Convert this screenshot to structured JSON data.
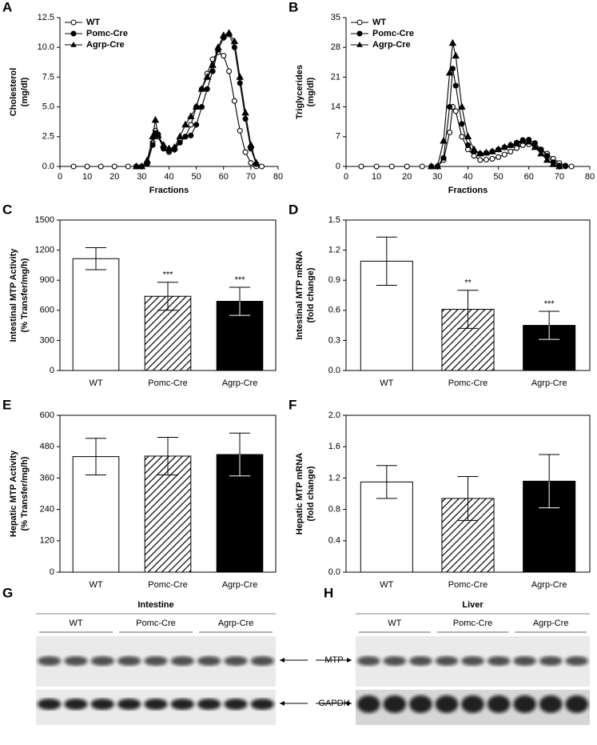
{
  "chart_data": [
    {
      "type": "line",
      "panel": "A",
      "ylabel": [
        "Cholesterol",
        "(mg/dl)"
      ],
      "xlabel": "Fractions",
      "x": [
        5,
        10,
        15,
        20,
        25,
        28,
        30,
        32,
        34,
        35,
        36,
        38,
        40,
        42,
        44,
        46,
        48,
        50,
        52,
        54,
        56,
        58,
        60,
        62,
        64,
        66,
        68,
        70,
        72,
        74
      ],
      "xlim": [
        0,
        80
      ],
      "xticks": [
        0,
        10,
        20,
        30,
        40,
        50,
        60,
        70,
        80
      ],
      "ylim": [
        0,
        12.5
      ],
      "yticks": [
        {
          "value": 0,
          "label": "0.0"
        },
        2.5,
        {
          "value": 5,
          "label": "5.0"
        },
        7.5,
        {
          "value": 10,
          "label": "10.0"
        },
        12.5
      ],
      "series": [
        {
          "name": "WT",
          "color": "#000000",
          "marker": "open-circle",
          "values": [
            0,
            0,
            0,
            0,
            0,
            0,
            0,
            0.3,
            2,
            3.0,
            2.5,
            1.5,
            1.2,
            1.5,
            2.2,
            2.5,
            3.5,
            5,
            6.5,
            7.8,
            9,
            9.6,
            9.3,
            8,
            5.5,
            3,
            1.2,
            0.3,
            0,
            0
          ]
        },
        {
          "name": "Pomc-Cre",
          "color": "#000000",
          "marker": "filled-circle",
          "values": [
            null,
            null,
            null,
            null,
            null,
            0,
            0,
            0.2,
            1.8,
            2.8,
            2.7,
            1.5,
            1.3,
            1.4,
            2.0,
            2.5,
            2.6,
            3.5,
            5,
            6.5,
            8,
            9.8,
            10.8,
            11.1,
            10,
            7,
            4,
            1.5,
            0.2,
            null
          ]
        },
        {
          "name": "Agrp-Cre",
          "color": "#000000",
          "marker": "triangle",
          "values": [
            null,
            null,
            null,
            null,
            null,
            0,
            0,
            0.5,
            2.5,
            3.9,
            2.6,
            1.8,
            1.5,
            1.6,
            2.5,
            3.5,
            4.2,
            5,
            6.5,
            7.5,
            8.5,
            10,
            11,
            11.2,
            10.5,
            7.5,
            4.5,
            1.8,
            0.3,
            null
          ]
        }
      ]
    },
    {
      "type": "line",
      "panel": "B",
      "ylabel": [
        "Triglycerides",
        "(mg/dl)"
      ],
      "xlabel": "Fractions",
      "x": [
        5,
        10,
        15,
        20,
        25,
        28,
        30,
        32,
        34,
        35,
        36,
        38,
        40,
        42,
        44,
        46,
        48,
        50,
        52,
        54,
        56,
        58,
        60,
        62,
        64,
        66,
        68,
        70,
        72,
        74
      ],
      "xlim": [
        0,
        80
      ],
      "xticks": [
        0,
        10,
        20,
        30,
        40,
        50,
        60,
        70,
        80
      ],
      "ylim": [
        0,
        35
      ],
      "yticks": [
        0,
        7,
        14,
        21,
        28,
        35
      ],
      "series": [
        {
          "name": "WT",
          "color": "#000000",
          "marker": "open-circle",
          "values": [
            0,
            0,
            0,
            0,
            0,
            0,
            0,
            1.5,
            8,
            14,
            13,
            7,
            4,
            2.5,
            1.5,
            1.6,
            1.8,
            2.2,
            2.8,
            3.5,
            4.3,
            5,
            5.2,
            4.8,
            4,
            3,
            1.8,
            0.8,
            0.2,
            0
          ]
        },
        {
          "name": "Pomc-Cre",
          "color": "#000000",
          "marker": "filled-circle",
          "values": [
            null,
            null,
            null,
            null,
            null,
            0,
            0,
            2,
            14,
            23,
            19,
            10,
            5,
            3.5,
            3,
            3.2,
            3.5,
            4,
            4.5,
            5,
            5.6,
            6.2,
            6.3,
            5.5,
            4,
            2.5,
            1,
            0.2,
            0,
            null
          ]
        },
        {
          "name": "Agrp-Cre",
          "color": "#000000",
          "marker": "triangle",
          "values": [
            null,
            null,
            null,
            null,
            null,
            0,
            0,
            6,
            22,
            29,
            26,
            14,
            7,
            4,
            3,
            3.2,
            3.5,
            4,
            4.5,
            5,
            5.4,
            6,
            5.8,
            4.5,
            3,
            1.5,
            0.5,
            0,
            null,
            null
          ]
        }
      ]
    },
    {
      "type": "bar",
      "panel": "C",
      "ylabel": [
        "Intestinal MTP Activity",
        "(% Transfer/mg/h)"
      ],
      "categories": [
        "WT",
        "Pomc-Cre",
        "Agrp-Cre"
      ],
      "values": [
        1115,
        740,
        690
      ],
      "errors": [
        110,
        140,
        140
      ],
      "annotations": [
        null,
        "***",
        "***"
      ],
      "fills": [
        "white",
        "hatched",
        "black"
      ],
      "ylim": [
        0,
        1500
      ],
      "yticks": [
        0,
        300,
        600,
        900,
        1200,
        1500
      ]
    },
    {
      "type": "bar",
      "panel": "D",
      "ylabel": [
        "Intestinal MTP mRNA",
        "(fold change)"
      ],
      "categories": [
        "WT",
        "Pomc-Cre",
        "Agrp-Cre"
      ],
      "values": [
        1.09,
        0.61,
        0.45
      ],
      "errors": [
        0.24,
        0.19,
        0.14
      ],
      "annotations": [
        null,
        "**",
        "***"
      ],
      "fills": [
        "white",
        "hatched",
        "black"
      ],
      "ylim": [
        0,
        1.5
      ],
      "yticks": [
        {
          "value": 0,
          "label": "0.0"
        },
        0.3,
        0.6,
        0.9,
        1.2,
        1.5
      ]
    },
    {
      "type": "bar",
      "panel": "E",
      "ylabel": [
        "Hepatic MTP Activity",
        "(% Transfer/mg/h)"
      ],
      "categories": [
        "WT",
        "Pomc-Cre",
        "Agrp-Cre"
      ],
      "values": [
        442,
        444,
        450
      ],
      "errors": [
        70,
        72,
        82
      ],
      "fills": [
        "white",
        "hatched",
        "black"
      ],
      "ylim": [
        0,
        600
      ],
      "yticks": [
        0,
        120,
        240,
        360,
        480,
        600
      ]
    },
    {
      "type": "bar",
      "panel": "F",
      "ylabel": [
        "Hepatic MTP mRNA",
        "(fold change)"
      ],
      "categories": [
        "WT",
        "Pomc-Cre",
        "Agrp-Cre"
      ],
      "values": [
        1.15,
        0.94,
        1.16
      ],
      "errors": [
        0.21,
        0.28,
        0.34
      ],
      "fills": [
        "white",
        "hatched",
        "black"
      ],
      "ylim": [
        0,
        2.0
      ],
      "yticks": [
        {
          "value": 0,
          "label": "0.0"
        },
        0.4,
        0.8,
        1.2,
        1.6,
        {
          "value": 2,
          "label": "2.0"
        }
      ]
    }
  ],
  "blots": [
    {
      "panel": "G",
      "tissue": "Intestine",
      "groups": [
        "WT",
        "Pomc-Cre",
        "Agrp-Cre"
      ],
      "proteins": [
        "MTP",
        "GAPDH"
      ]
    },
    {
      "panel": "H",
      "tissue": "Liver",
      "groups": [
        "WT",
        "Pomc-Cre",
        "Agrp-Cre"
      ],
      "proteins": [
        "MTP",
        "GAPDH"
      ]
    }
  ]
}
